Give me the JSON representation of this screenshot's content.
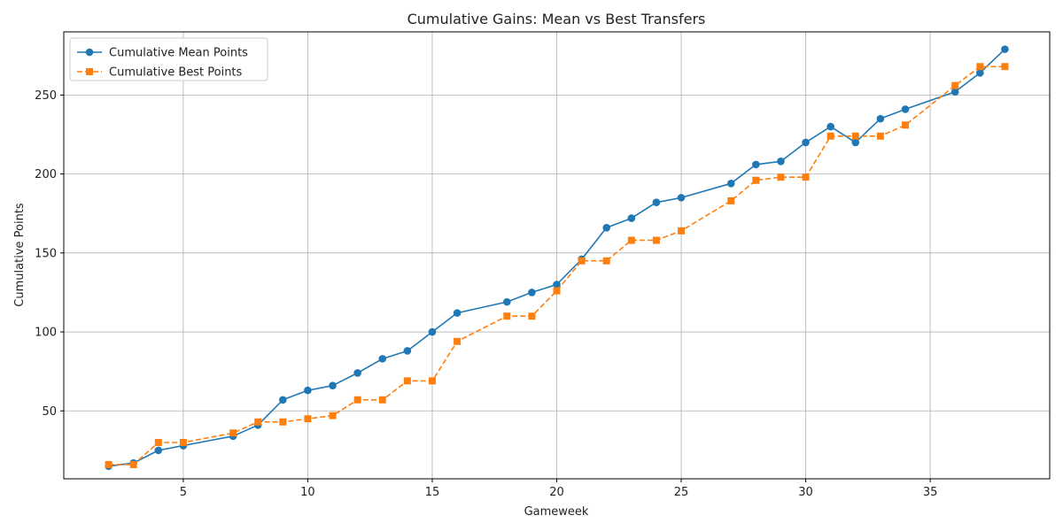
{
  "chart_data": {
    "type": "line",
    "title": "Cumulative Gains: Mean vs Best Transfers",
    "xlabel": "Gameweek",
    "ylabel": "Cumulative Points",
    "xlim": [
      0.2,
      39.8
    ],
    "ylim": [
      7,
      290
    ],
    "xticks": [
      5,
      10,
      15,
      20,
      25,
      30,
      35
    ],
    "yticks": [
      50,
      100,
      150,
      200,
      250
    ],
    "grid": true,
    "legend_position": "top-left",
    "series": [
      {
        "name": "Cumulative Mean Points",
        "color": "#1f77b4",
        "line_style": "solid",
        "marker": "circle",
        "x": [
          2,
          3,
          4,
          5,
          7,
          8,
          9,
          10,
          11,
          12,
          13,
          14,
          15,
          16,
          18,
          19,
          20,
          21,
          22,
          23,
          24,
          25,
          27,
          28,
          29,
          30,
          31,
          32,
          33,
          34,
          36,
          37,
          38
        ],
        "y": [
          15,
          17,
          25,
          28,
          34,
          41,
          57,
          63,
          66,
          74,
          83,
          88,
          100,
          112,
          119,
          125,
          130,
          146,
          166,
          172,
          182,
          185,
          194,
          206,
          208,
          220,
          230,
          220,
          235,
          241,
          252,
          264,
          279
        ]
      },
      {
        "name": "Cumulative Best Points",
        "color": "#ff7f0e",
        "line_style": "dashed",
        "marker": "square",
        "x": [
          2,
          3,
          4,
          5,
          7,
          8,
          9,
          10,
          11,
          12,
          13,
          14,
          15,
          16,
          18,
          19,
          20,
          21,
          22,
          23,
          24,
          25,
          27,
          28,
          29,
          30,
          31,
          32,
          33,
          34,
          36,
          37,
          38
        ],
        "y": [
          16,
          16,
          30,
          30,
          36,
          43,
          43,
          45,
          47,
          57,
          57,
          69,
          69,
          94,
          110,
          110,
          126,
          145,
          145,
          158,
          158,
          164,
          183,
          196,
          198,
          198,
          224,
          224,
          224,
          231,
          256,
          268,
          268
        ]
      }
    ]
  }
}
